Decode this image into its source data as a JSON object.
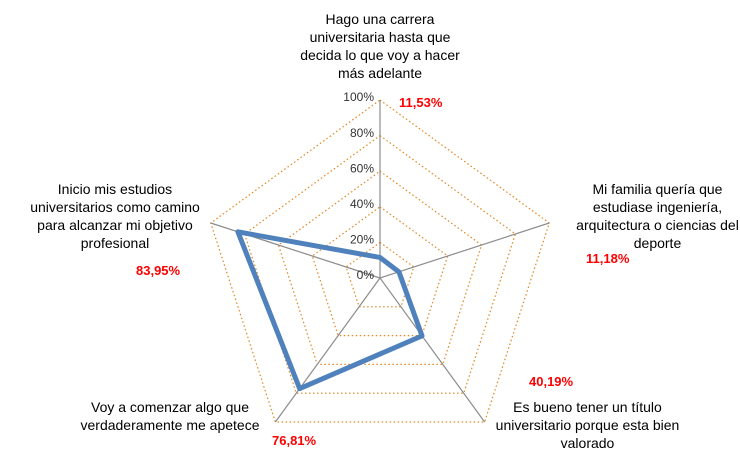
{
  "chart_data": {
    "type": "radar",
    "categories": [
      "Hago una carrera universitaria hasta que decida lo que voy a hacer más adelante",
      "Mi familia quería que estudiase ingeniería, arquitectura o ciencias del deporte",
      "Es bueno tener un título universitario porque esta bien valorado",
      "Voy a comenzar algo que verdaderamente me apetece",
      "Inicio mis estudios universitarios como camino para alcanzar mi objetivo profesional"
    ],
    "values": [
      11.53,
      11.18,
      40.19,
      76.81,
      83.95
    ],
    "value_labels": [
      "11,53%",
      "11,18%",
      "40,19%",
      "76,81%",
      "83,95%"
    ],
    "color": "#4f81bd",
    "grid_color": "#e3861e",
    "rlim": [
      0,
      100
    ],
    "rticks": [
      {
        "value": 0,
        "label": "0%"
      },
      {
        "value": 20,
        "label": "20%"
      },
      {
        "value": 40,
        "label": "40%"
      },
      {
        "value": 60,
        "label": "60%"
      },
      {
        "value": 80,
        "label": "80%"
      },
      {
        "value": 100,
        "label": "100%"
      }
    ]
  }
}
